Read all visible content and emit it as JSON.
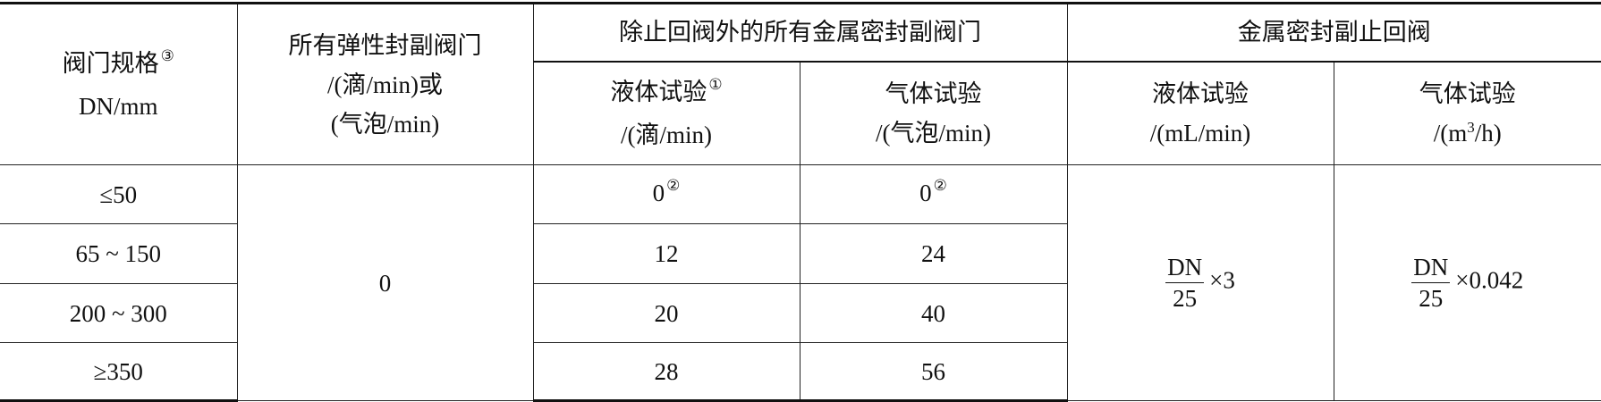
{
  "headers": {
    "size": {
      "line1": "阀门规格",
      "note": "③",
      "line2": "DN/mm"
    },
    "resilient": {
      "line1": "所有弹性封副阀门",
      "line2": "/(滴/min)或",
      "line3": "(气泡/min)"
    },
    "metal_group": "除止回阀外的所有金属密封副阀门",
    "metal_liquid": {
      "line1": "液体试验",
      "note": "①",
      "line2": "/(滴/min)"
    },
    "metal_gas": {
      "line1": "气体试验",
      "line2": "/(气泡/min)"
    },
    "check_group": "金属密封副止回阀",
    "check_liquid": {
      "line1": "液体试验",
      "line2": "/(mL/min)"
    },
    "check_gas": {
      "line1": "气体试验",
      "line2_pre": "/(m",
      "line2_sup": "3",
      "line2_post": "/h)"
    }
  },
  "rows": [
    {
      "size": "≤50",
      "metal_liquid": "0",
      "metal_liquid_note": "②",
      "metal_gas": "0",
      "metal_gas_note": "②"
    },
    {
      "size": "65 ~ 150",
      "metal_liquid": "12",
      "metal_gas": "24"
    },
    {
      "size": "200 ~ 300",
      "metal_liquid": "20",
      "metal_gas": "40"
    },
    {
      "size": "≥350",
      "metal_liquid": "28",
      "metal_gas": "56"
    }
  ],
  "resilient_value": "0",
  "check_liquid_formula": {
    "numerator": "DN",
    "denominator": "25",
    "factor": "×3"
  },
  "check_gas_formula": {
    "numerator": "DN",
    "denominator": "25",
    "factor": "×0.042"
  }
}
